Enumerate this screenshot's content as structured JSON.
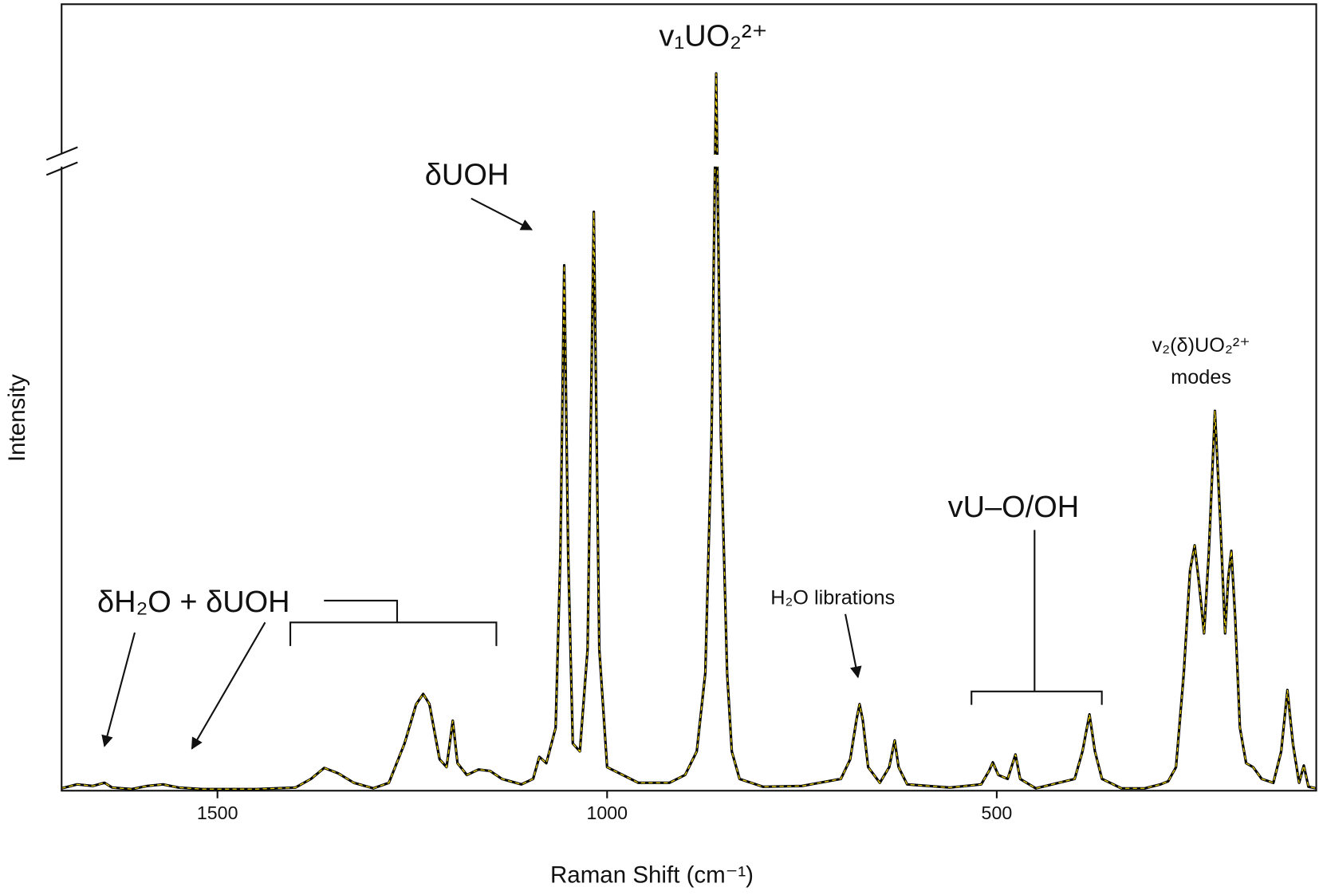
{
  "chart_data": {
    "type": "line",
    "x_label": "Raman Shift (cm⁻¹)",
    "y_label": "Intensity",
    "xlim": [
      1700,
      90
    ],
    "ylim": [
      0,
      100
    ],
    "xticks": [
      1500,
      1000,
      500
    ],
    "x": [
      1700,
      1680,
      1660,
      1645,
      1635,
      1610,
      1590,
      1570,
      1550,
      1520,
      1450,
      1400,
      1380,
      1363,
      1345,
      1325,
      1300,
      1280,
      1260,
      1245,
      1236,
      1228,
      1215,
      1206,
      1198,
      1192,
      1180,
      1165,
      1150,
      1135,
      1110,
      1095,
      1087,
      1078,
      1066,
      1060,
      1055,
      1050,
      1044,
      1035,
      1025,
      1017,
      1010,
      1000,
      960,
      920,
      900,
      885,
      874,
      866,
      860,
      854,
      846,
      840,
      830,
      800,
      750,
      700,
      688,
      680,
      676,
      672,
      665,
      650,
      638,
      631,
      626,
      615,
      560,
      520,
      510,
      505,
      498,
      486,
      476,
      470,
      450,
      400,
      390,
      381,
      374,
      365,
      340,
      310,
      290,
      280,
      270,
      260,
      252,
      246,
      240,
      234,
      228,
      220,
      213,
      207,
      203,
      199,
      194,
      188,
      180,
      171,
      160,
      145,
      135,
      127,
      120,
      112,
      106,
      100,
      90
    ],
    "series": [
      {
        "color": "#000000",
        "overlay_color": "#f2d800",
        "values": [
          0.3,
          0.8,
          0.6,
          1.0,
          0.4,
          0.2,
          0.6,
          0.8,
          0.4,
          0.2,
          0.2,
          0.4,
          1.5,
          2.9,
          2.2,
          1.0,
          0.3,
          1.0,
          6.0,
          11.0,
          12.3,
          11.0,
          4.0,
          3.0,
          8.9,
          3.5,
          2.0,
          2.7,
          2.5,
          1.5,
          0.8,
          1.5,
          4.3,
          3.5,
          8,
          30,
          66.8,
          30,
          6,
          5,
          18,
          73.6,
          18,
          3,
          1.0,
          1.0,
          2,
          5,
          15,
          45,
          91.2,
          45,
          15,
          5,
          1.5,
          0.5,
          0.6,
          1.5,
          4,
          9,
          11,
          9,
          3,
          1,
          3,
          6.4,
          3,
          0.8,
          0.4,
          0.8,
          2.5,
          3.6,
          2.0,
          1.5,
          4.6,
          1.5,
          0.3,
          1.5,
          5,
          9.7,
          5,
          1.5,
          0.3,
          0.3,
          0.8,
          1.2,
          3,
          15,
          28,
          31.2,
          26,
          20,
          30,
          48.3,
          34,
          20,
          27,
          30.5,
          22,
          8,
          3.5,
          3.0,
          1.5,
          1.0,
          5,
          12.8,
          6,
          1.0,
          3.2,
          0.5,
          0.3
        ]
      }
    ],
    "annotations": [
      "v₁UO₂²⁺",
      "δUOH",
      "δH₂O + δUOH",
      "H₂O librations",
      "vU–O/OH",
      "v₂(δ)UO₂²⁺",
      "modes"
    ]
  }
}
